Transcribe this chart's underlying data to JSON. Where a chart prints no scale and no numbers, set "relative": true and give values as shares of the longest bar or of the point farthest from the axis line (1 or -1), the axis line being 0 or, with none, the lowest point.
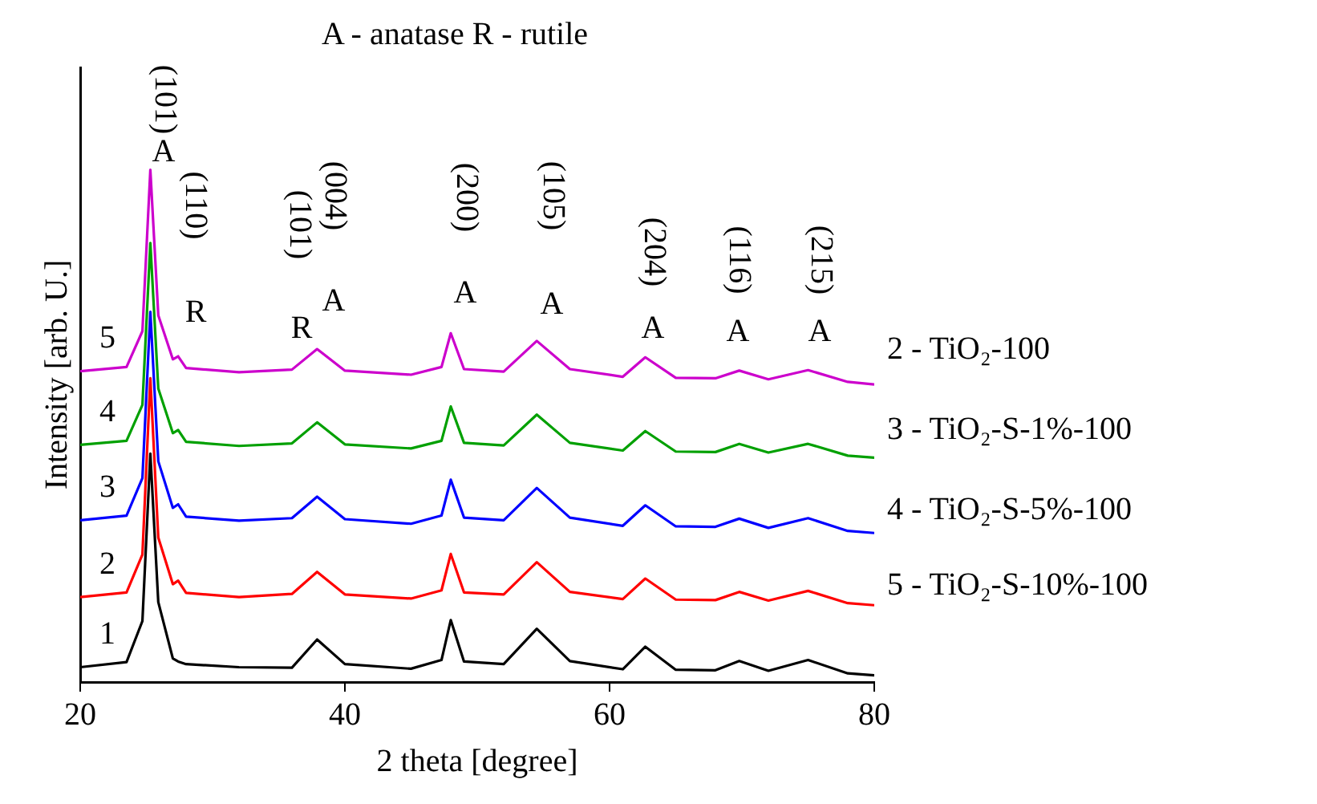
{
  "chart_data": {
    "type": "line",
    "title": "A - anatase R - rutile",
    "xlabel": "2 theta [degree]",
    "ylabel": "Intensity [arb. U.]",
    "relative": true,
    "xlim": [
      20,
      80
    ],
    "xticks": [
      20,
      40,
      60,
      80
    ],
    "grid": false,
    "marker": "none",
    "line_style": "solid",
    "x": [
      20,
      23.5,
      24.7,
      25.3,
      25.9,
      27,
      27.4,
      28,
      32,
      36,
      37.9,
      40,
      45,
      47.3,
      48,
      49,
      52,
      54.5,
      57,
      61,
      62.7,
      65,
      68,
      69.8,
      72,
      75,
      78,
      80
    ],
    "series": [
      {
        "name": "1",
        "color": "#000000",
        "values": [
          0.029,
          0.039,
          0.119,
          0.446,
          0.156,
          0.046,
          0.04,
          0.035,
          0.029,
          0.028,
          0.083,
          0.035,
          0.026,
          0.043,
          0.121,
          0.04,
          0.035,
          0.104,
          0.041,
          0.025,
          0.069,
          0.024,
          0.023,
          0.041,
          0.022,
          0.043,
          0.017,
          0.013
        ]
      },
      {
        "name": "2",
        "color": "#ff0000",
        "values": [
          0.166,
          0.175,
          0.249,
          0.593,
          0.282,
          0.191,
          0.198,
          0.174,
          0.166,
          0.172,
          0.215,
          0.171,
          0.163,
          0.179,
          0.25,
          0.175,
          0.171,
          0.234,
          0.176,
          0.162,
          0.202,
          0.161,
          0.16,
          0.176,
          0.159,
          0.178,
          0.154,
          0.15
        ]
      },
      {
        "name": "3",
        "color": "#0000ff",
        "values": [
          0.316,
          0.325,
          0.398,
          0.723,
          0.431,
          0.34,
          0.347,
          0.323,
          0.315,
          0.32,
          0.362,
          0.318,
          0.309,
          0.325,
          0.395,
          0.321,
          0.316,
          0.379,
          0.321,
          0.305,
          0.345,
          0.304,
          0.303,
          0.319,
          0.301,
          0.32,
          0.295,
          0.291
        ]
      },
      {
        "name": "4",
        "color": "#00a000",
        "values": [
          0.463,
          0.471,
          0.541,
          0.857,
          0.573,
          0.486,
          0.492,
          0.469,
          0.461,
          0.466,
          0.507,
          0.464,
          0.456,
          0.471,
          0.538,
          0.467,
          0.462,
          0.522,
          0.467,
          0.452,
          0.49,
          0.45,
          0.449,
          0.465,
          0.448,
          0.465,
          0.442,
          0.438
        ]
      },
      {
        "name": "5",
        "color": "#cc00cc",
        "values": [
          0.607,
          0.615,
          0.685,
          1.0,
          0.716,
          0.63,
          0.636,
          0.613,
          0.605,
          0.61,
          0.65,
          0.608,
          0.6,
          0.615,
          0.681,
          0.611,
          0.606,
          0.666,
          0.611,
          0.596,
          0.634,
          0.594,
          0.593,
          0.608,
          0.591,
          0.609,
          0.586,
          0.581
        ]
      }
    ],
    "annotations": [
      "(101)",
      "A",
      "(110)",
      "R",
      "(101)",
      "R",
      "(004)",
      "A",
      "(200)",
      "A",
      "(105)",
      "A",
      "(204)",
      "A",
      "(116)",
      "A",
      "(215)",
      "A",
      "2 - TiO₂-100",
      "3 - TiO₂-S-1%-100",
      "4 - TiO₂-S-5%-100",
      "5 - TiO₂-S-10%-100"
    ]
  }
}
